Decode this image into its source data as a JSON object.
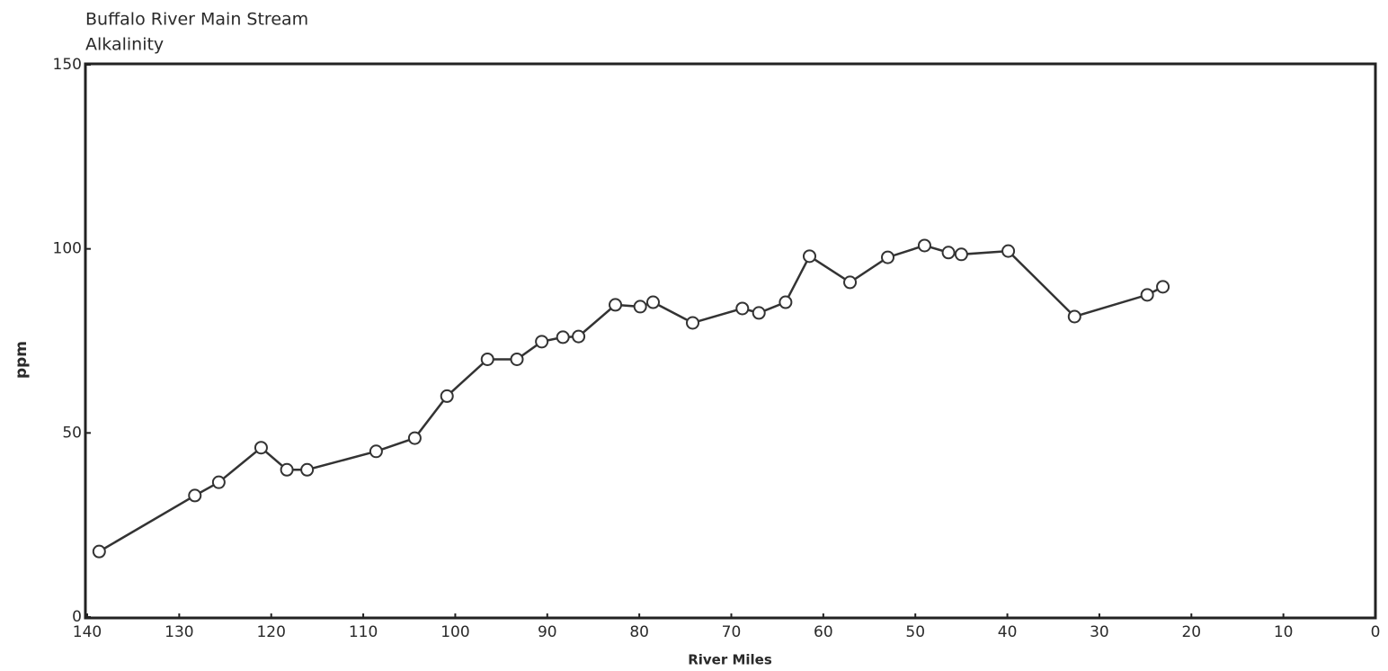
{
  "chart_data": {
    "type": "line",
    "title": [
      "Buffalo River Main Stream",
      "Alkalinity"
    ],
    "xlabel": "River Miles",
    "ylabel": "ppm",
    "xlim": [
      140,
      0
    ],
    "xticks": [
      140,
      130,
      120,
      110,
      100,
      90,
      80,
      70,
      60,
      50,
      40,
      30,
      20,
      10,
      0
    ],
    "ylim": [
      0,
      150
    ],
    "yticks": [
      0,
      50,
      100,
      150
    ],
    "grid": false,
    "series": [
      {
        "color": "#333333",
        "x": [
          138.7,
          128.3,
          125.7,
          121.1,
          118.3,
          116.1,
          108.6,
          104.4,
          100.9,
          96.5,
          93.3,
          90.6,
          88.3,
          86.6,
          82.6,
          79.9,
          78.5,
          74.2,
          68.8,
          67,
          64.1,
          61.5,
          57.1,
          53,
          49,
          46.4,
          45,
          39.9,
          32.7,
          24.8,
          23.1
        ],
        "values": [
          17.8,
          33,
          36.6,
          46,
          40,
          40,
          45,
          48.6,
          60,
          70,
          70,
          74.8,
          76,
          76.2,
          84.8,
          84.3,
          85.5,
          79.9,
          83.8,
          82.6,
          85.5,
          98,
          90.9,
          97.7,
          100.9,
          99,
          98.5,
          99.4,
          81.6,
          87.5,
          89.7
        ]
      }
    ]
  }
}
